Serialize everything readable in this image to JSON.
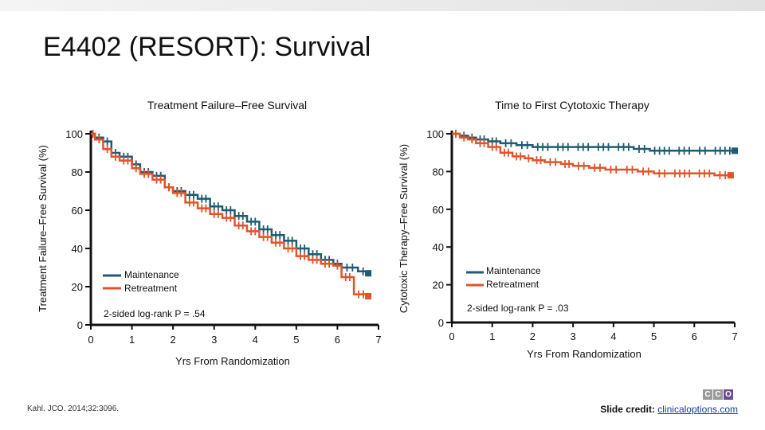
{
  "slide": {
    "title": "E4402 (RESORT): Survival",
    "citation": "Kahl. JCO. 2014;32:3096.",
    "credit_label": "Slide credit:",
    "credit_link": "clinicaloptions.com",
    "logo_letters": [
      "C",
      "C",
      "O"
    ],
    "colors": {
      "maintenance": "#1f5c73",
      "retreatment": "#e0532b",
      "logo_gray": "#9a9a9a",
      "logo_purple": "#6b4e9b"
    }
  },
  "chart_data": [
    {
      "type": "line",
      "title": "Treatment Failure–Free Survival",
      "xlabel": "Yrs From Randomization",
      "ylabel": "Treatment Failure–Free Survival (%)",
      "xlim": [
        0,
        7
      ],
      "ylim": [
        0,
        100
      ],
      "xticks": [
        "0",
        "1",
        "2",
        "3",
        "4",
        "5",
        "6",
        "7"
      ],
      "yticks": [
        "0",
        "20",
        "40",
        "60",
        "80",
        "100"
      ],
      "annotation": "2-sided log-rank P = .54",
      "legend": [
        "Maintenance",
        "Retreatment"
      ],
      "series": [
        {
          "name": "Maintenance",
          "color": "#1f5c73",
          "x": [
            0,
            0.1,
            0.3,
            0.5,
            0.7,
            1.0,
            1.2,
            1.5,
            1.8,
            2.0,
            2.3,
            2.6,
            2.9,
            3.2,
            3.5,
            3.8,
            4.1,
            4.4,
            4.7,
            5.0,
            5.3,
            5.6,
            5.9,
            6.1,
            6.5,
            6.75
          ],
          "y": [
            100,
            98,
            96,
            90,
            88,
            84,
            80,
            78,
            72,
            70,
            68,
            66,
            62,
            60,
            57,
            54,
            50,
            47,
            44,
            40,
            37,
            34,
            32,
            30,
            28,
            27
          ]
        },
        {
          "name": "Retreatment",
          "color": "#e0532b",
          "x": [
            0,
            0.1,
            0.3,
            0.5,
            0.7,
            1.0,
            1.2,
            1.5,
            1.8,
            2.0,
            2.3,
            2.6,
            2.9,
            3.2,
            3.5,
            3.8,
            4.1,
            4.4,
            4.7,
            5.0,
            5.3,
            5.6,
            5.9,
            6.1,
            6.4,
            6.75
          ],
          "y": [
            100,
            97,
            92,
            88,
            86,
            82,
            79,
            76,
            72,
            69,
            64,
            61,
            58,
            56,
            52,
            49,
            46,
            43,
            40,
            36,
            34,
            32,
            31,
            25,
            16,
            15
          ]
        }
      ]
    },
    {
      "type": "line",
      "title": "Time to First Cytotoxic Therapy",
      "xlabel": "Yrs From Randomization",
      "ylabel": "Cytotoxic Therapy–Free Survival (%)",
      "xlim": [
        0,
        7
      ],
      "ylim": [
        0,
        100
      ],
      "xticks": [
        "0",
        "1",
        "2",
        "3",
        "4",
        "5",
        "6",
        "7"
      ],
      "yticks": [
        "0",
        "20",
        "40",
        "60",
        "80",
        "100"
      ],
      "annotation": "2-sided log-rank P = .03",
      "legend": [
        "Maintenance",
        "Retreatment"
      ],
      "series": [
        {
          "name": "Maintenance",
          "color": "#1f5c73",
          "x": [
            0,
            0.2,
            0.4,
            0.6,
            0.9,
            1.2,
            1.6,
            2.0,
            2.5,
            3.0,
            3.5,
            4.0,
            4.5,
            4.9,
            5.5,
            6.0,
            6.4,
            7.0
          ],
          "y": [
            100,
            99,
            98,
            97,
            96,
            95,
            94,
            93,
            93,
            93,
            93,
            93,
            92,
            91,
            91,
            91,
            91,
            91
          ]
        },
        {
          "name": "Retreatment",
          "color": "#e0532b",
          "x": [
            0,
            0.2,
            0.4,
            0.6,
            0.9,
            1.2,
            1.5,
            1.8,
            2.0,
            2.3,
            2.7,
            3.0,
            3.4,
            3.8,
            4.2,
            4.6,
            5.0,
            5.4,
            6.0,
            6.5,
            6.9
          ],
          "y": [
            100,
            98,
            97,
            95,
            93,
            90,
            88,
            87,
            86,
            85,
            84,
            83,
            82,
            81,
            81,
            80,
            79,
            79,
            79,
            78,
            78
          ]
        }
      ]
    }
  ]
}
